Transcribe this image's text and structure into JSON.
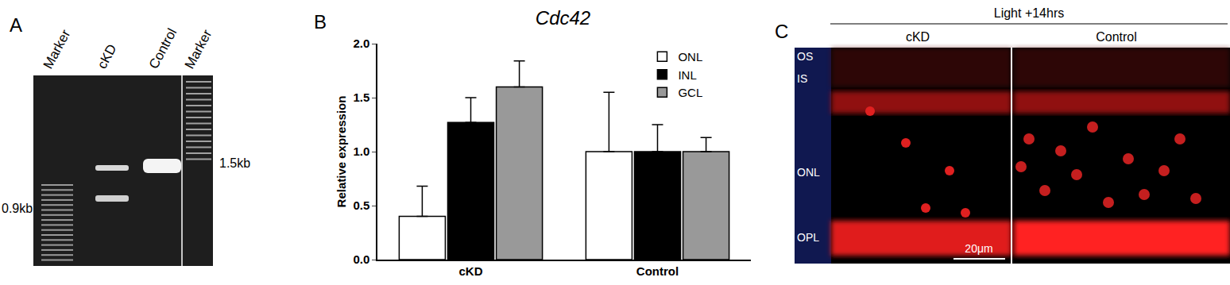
{
  "panels": {
    "A": {
      "label": "A",
      "lanes": [
        "Marker",
        "cKD",
        "Control",
        "Marker"
      ],
      "size_labels": [
        "0.9kb",
        "1.5kb"
      ]
    },
    "B": {
      "label": "B"
    },
    "C": {
      "label": "C",
      "header": "Light +14hrs",
      "conditions": [
        "cKD",
        "Control"
      ],
      "layers": [
        "OS",
        "IS",
        "ONL",
        "OPL"
      ],
      "scale_bar": "20μm"
    }
  },
  "chart_data": {
    "type": "bar",
    "title": "Cdc42",
    "y_label": "Relative expression",
    "categories": [
      "cKD",
      "Control"
    ],
    "series": [
      {
        "name": "ONL",
        "color": "#ffffff",
        "values": [
          0.4,
          1.0
        ],
        "errors": [
          0.28,
          0.55
        ]
      },
      {
        "name": "INL",
        "color": "#000000",
        "values": [
          1.27,
          1.0
        ],
        "errors": [
          0.23,
          0.25
        ]
      },
      {
        "name": "GCL",
        "color": "#999999",
        "values": [
          1.6,
          1.0
        ],
        "errors": [
          0.24,
          0.13
        ]
      }
    ],
    "ylim": [
      0,
      2
    ],
    "yticks": [
      {
        "value": 0,
        "label": "0.0"
      },
      0.5,
      {
        "value": 1,
        "label": "1.0"
      },
      1.5,
      {
        "value": 2,
        "label": "2.0"
      }
    ],
    "grid": false,
    "legend": "top right"
  }
}
